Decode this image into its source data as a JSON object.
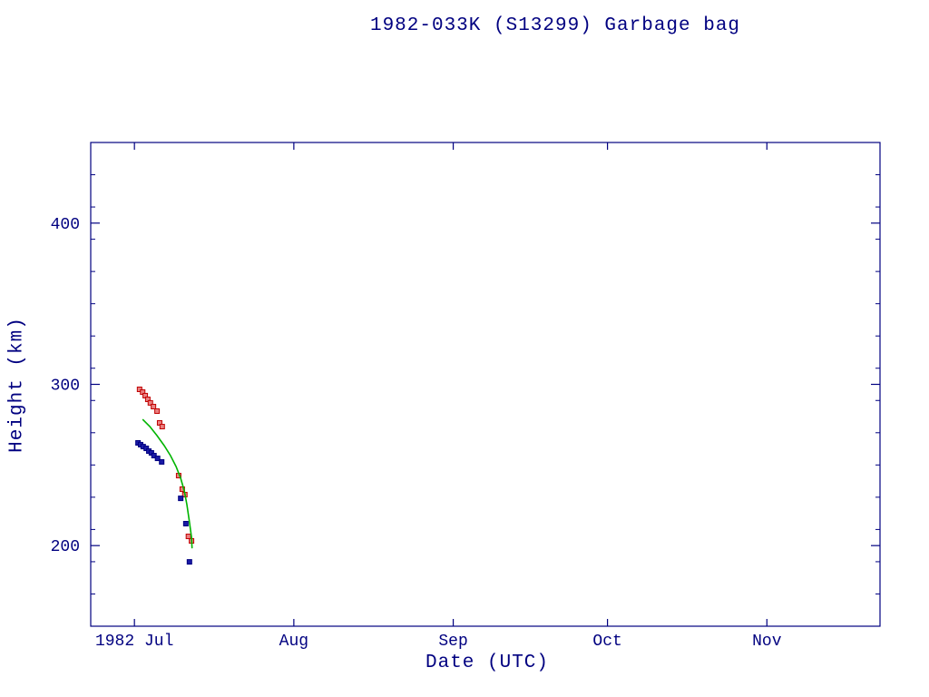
{
  "title": "1982-033K (S13299) Garbage bag",
  "colors": {
    "frame": "#000080",
    "text": "#000080",
    "background": "#ffffff",
    "apogee_stroke": "#c00000",
    "apogee_fill": "#e98080",
    "perigee_stroke": "#000080",
    "perigee_fill": "#1a1aa6",
    "model_line": "#00b400"
  },
  "chart_data": {
    "type": "scatter",
    "title": "1982-033K (S13299) Garbage bag",
    "xlabel": "Date (UTC)",
    "ylabel": "Height (km)",
    "x_unit": "days since 1982 Jul 1",
    "xlim": [
      -8.5,
      145
    ],
    "ylim": [
      150,
      450
    ],
    "grid": false,
    "legend": "none",
    "x_ticks": [
      {
        "day": 0,
        "label": "1982 Jul"
      },
      {
        "day": 31,
        "label": "Aug"
      },
      {
        "day": 62,
        "label": "Sep"
      },
      {
        "day": 92,
        "label": "Oct"
      },
      {
        "day": 123,
        "label": "Nov"
      }
    ],
    "y_ticks": [
      {
        "value": 200,
        "label": "200"
      },
      {
        "value": 300,
        "label": "300"
      },
      {
        "value": 400,
        "label": "400"
      }
    ],
    "y_minor_step": 20,
    "series": [
      {
        "name": "apogee height",
        "kind": "scatter",
        "marker": "square",
        "stroke": "#c00000",
        "fill": "#e98080",
        "points": [
          [
            1.0,
            296.9
          ],
          [
            1.6,
            295.2
          ],
          [
            2.1,
            293.0
          ],
          [
            2.6,
            290.7
          ],
          [
            3.1,
            288.5
          ],
          [
            3.7,
            286.2
          ],
          [
            4.4,
            283.4
          ],
          [
            4.9,
            276.1
          ],
          [
            5.4,
            273.8
          ],
          [
            8.6,
            243.4
          ],
          [
            9.3,
            235.0
          ],
          [
            9.8,
            231.6
          ],
          [
            10.5,
            205.7
          ],
          [
            11.1,
            202.9
          ]
        ]
      },
      {
        "name": "perigee height",
        "kind": "scatter",
        "marker": "square",
        "stroke": "#000080",
        "fill": "#1a1aa6",
        "points": [
          [
            0.7,
            263.7
          ],
          [
            1.2,
            262.6
          ],
          [
            1.7,
            261.4
          ],
          [
            2.3,
            260.3
          ],
          [
            2.8,
            258.6
          ],
          [
            3.3,
            257.5
          ],
          [
            3.8,
            255.8
          ],
          [
            4.5,
            254.1
          ],
          [
            5.3,
            251.9
          ],
          [
            9.0,
            229.3
          ],
          [
            10.0,
            213.6
          ],
          [
            10.7,
            189.9
          ]
        ]
      },
      {
        "name": "decay model mean height",
        "kind": "line",
        "stroke": "#00b400",
        "points": [
          [
            1.6,
            278.3
          ],
          [
            3.0,
            273.8
          ],
          [
            4.4,
            268.2
          ],
          [
            5.8,
            262.0
          ],
          [
            7.0,
            255.8
          ],
          [
            8.1,
            249.0
          ],
          [
            9.0,
            241.7
          ],
          [
            9.7,
            233.8
          ],
          [
            10.2,
            225.4
          ],
          [
            10.7,
            214.7
          ],
          [
            11.1,
            205.1
          ],
          [
            11.2,
            198.3
          ]
        ]
      }
    ]
  }
}
